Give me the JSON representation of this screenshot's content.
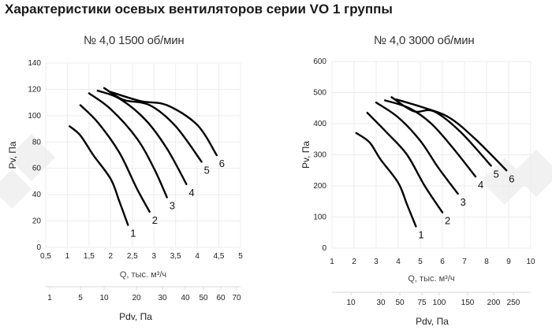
{
  "title": "Характеристики осевых вентиляторов серии VO 1 группы",
  "chart_data": [
    {
      "type": "line",
      "title": "№ 4,0 1500 об/мин",
      "xlabel": "Q, тыс. м³/ч",
      "ylabel": "Pv, Па",
      "secondary_xlabel": "Pdv, Па",
      "xlim": [
        0.5,
        5
      ],
      "ylim": [
        0,
        140
      ],
      "x_ticks": [
        "0,5",
        "1",
        "1,5",
        "2",
        "2,5",
        "3",
        "3,5",
        "4",
        "4,5",
        "5"
      ],
      "y_ticks": [
        "0",
        "20",
        "40",
        "60",
        "80",
        "100",
        "120",
        "140"
      ],
      "secondary_x_ticks": [
        "1",
        "5",
        "10",
        "20",
        "30",
        "40",
        "50",
        "60",
        "70"
      ],
      "grid": true,
      "series": [
        {
          "name": "1",
          "x": [
            1.05,
            1.3,
            1.6,
            2.0,
            2.2,
            2.4
          ],
          "y": [
            92,
            85,
            70,
            52,
            35,
            17
          ]
        },
        {
          "name": "2",
          "x": [
            1.3,
            1.7,
            2.2,
            2.6,
            2.9
          ],
          "y": [
            108,
            95,
            72,
            45,
            27
          ]
        },
        {
          "name": "3",
          "x": [
            1.5,
            2.0,
            2.6,
            3.0,
            3.3
          ],
          "y": [
            117,
            105,
            83,
            60,
            38
          ]
        },
        {
          "name": "4",
          "x": [
            1.7,
            2.2,
            2.8,
            3.3,
            3.75
          ],
          "y": [
            119,
            113,
            97,
            75,
            48
          ]
        },
        {
          "name": "5",
          "x": [
            1.85,
            2.3,
            2.9,
            3.5,
            4.1
          ],
          "y": [
            121,
            112,
            108,
            92,
            65
          ]
        },
        {
          "name": "6",
          "x": [
            2.0,
            2.7,
            3.3,
            4.0,
            4.45
          ],
          "y": [
            118,
            111,
            108,
            93,
            70
          ]
        }
      ]
    },
    {
      "type": "line",
      "title": "№ 4,0 3000 об/мин",
      "xlabel": "Q, тыс. м³/ч",
      "ylabel": "Pv, Па",
      "secondary_xlabel": "Pdv, Па",
      "xlim": [
        1,
        10
      ],
      "ylim": [
        0,
        600
      ],
      "x_ticks": [
        "1",
        "2",
        "3",
        "4",
        "5",
        "6",
        "7",
        "8",
        "9",
        "10"
      ],
      "y_ticks": [
        "0",
        "100",
        "200",
        "300",
        "400",
        "500",
        "600"
      ],
      "secondary_x_ticks": [
        "10",
        "30",
        "50",
        "75",
        "100",
        "150",
        "200",
        "250"
      ],
      "grid": true,
      "series": [
        {
          "name": "1",
          "x": [
            2.1,
            2.7,
            3.2,
            4.0,
            4.4,
            4.8
          ],
          "y": [
            370,
            340,
            285,
            210,
            140,
            70
          ]
        },
        {
          "name": "2",
          "x": [
            2.6,
            3.5,
            4.4,
            5.2,
            6.0
          ],
          "y": [
            435,
            370,
            300,
            200,
            115
          ]
        },
        {
          "name": "3",
          "x": [
            3.0,
            4.0,
            5.0,
            5.8,
            6.7
          ],
          "y": [
            468,
            420,
            345,
            260,
            175
          ]
        },
        {
          "name": "4",
          "x": [
            3.4,
            4.5,
            5.5,
            6.5,
            7.5
          ],
          "y": [
            475,
            450,
            400,
            320,
            230
          ]
        },
        {
          "name": "5",
          "x": [
            3.7,
            4.7,
            5.6,
            6.8,
            8.2
          ],
          "y": [
            485,
            440,
            440,
            375,
            265
          ]
        },
        {
          "name": "6",
          "x": [
            3.9,
            5.0,
            6.3,
            7.5,
            8.9
          ],
          "y": [
            478,
            455,
            420,
            350,
            250
          ]
        }
      ]
    }
  ]
}
